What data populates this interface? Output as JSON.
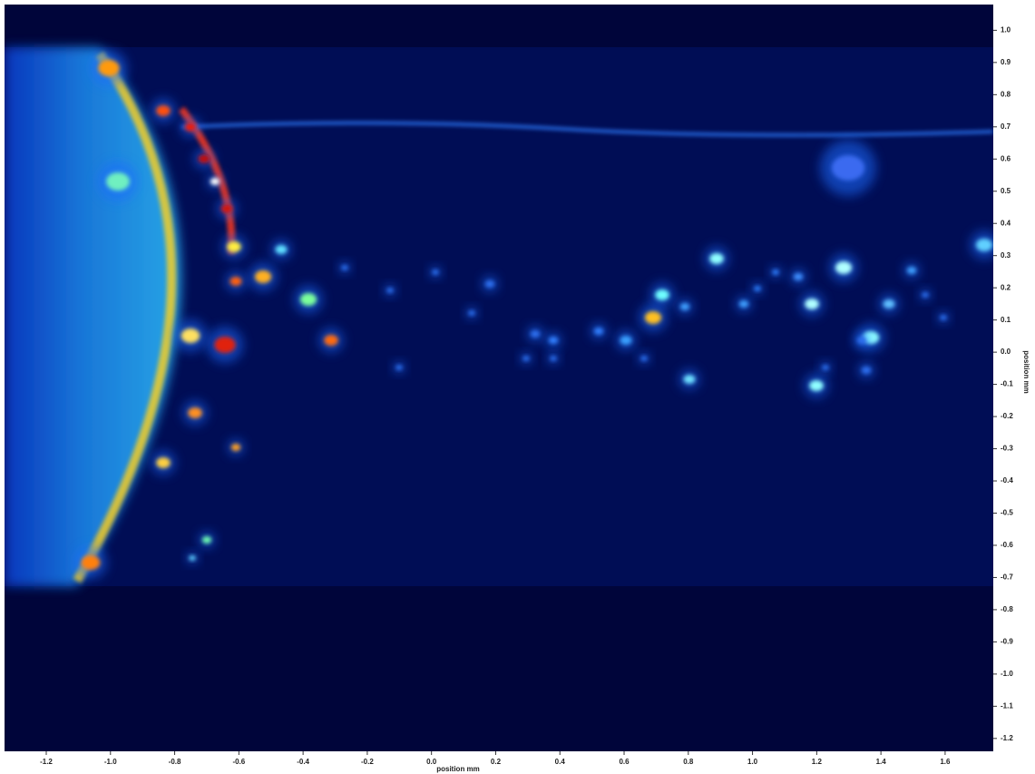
{
  "chart_data": {
    "type": "heatmap-image",
    "x_label": "position mm",
    "y_label": "position mm",
    "xlim": [
      -1.33,
      1.75
    ],
    "ylim": [
      -1.24,
      1.08
    ],
    "xticks": [
      -1.2,
      {
        "value": -1,
        "label": "-1.0"
      },
      -0.8,
      -0.6,
      -0.4,
      -0.2,
      {
        "value": 0,
        "label": "0.0"
      },
      0.2,
      0.4,
      0.6,
      0.8,
      {
        "value": 1,
        "label": "1.0"
      },
      1.2,
      1.4,
      1.6
    ],
    "yticks": [
      {
        "value": 1,
        "label": "1.0"
      },
      0.9,
      0.8,
      0.7,
      0.6,
      0.5,
      0.4,
      0.3,
      0.2,
      0.1,
      {
        "value": 0,
        "label": "0.0"
      },
      -0.1,
      -0.2,
      -0.3,
      -0.4,
      -0.5,
      -0.6,
      -0.7,
      -0.8,
      -0.9,
      {
        "value": -1,
        "label": "-1.0"
      },
      -1.1,
      -1.2
    ]
  }
}
